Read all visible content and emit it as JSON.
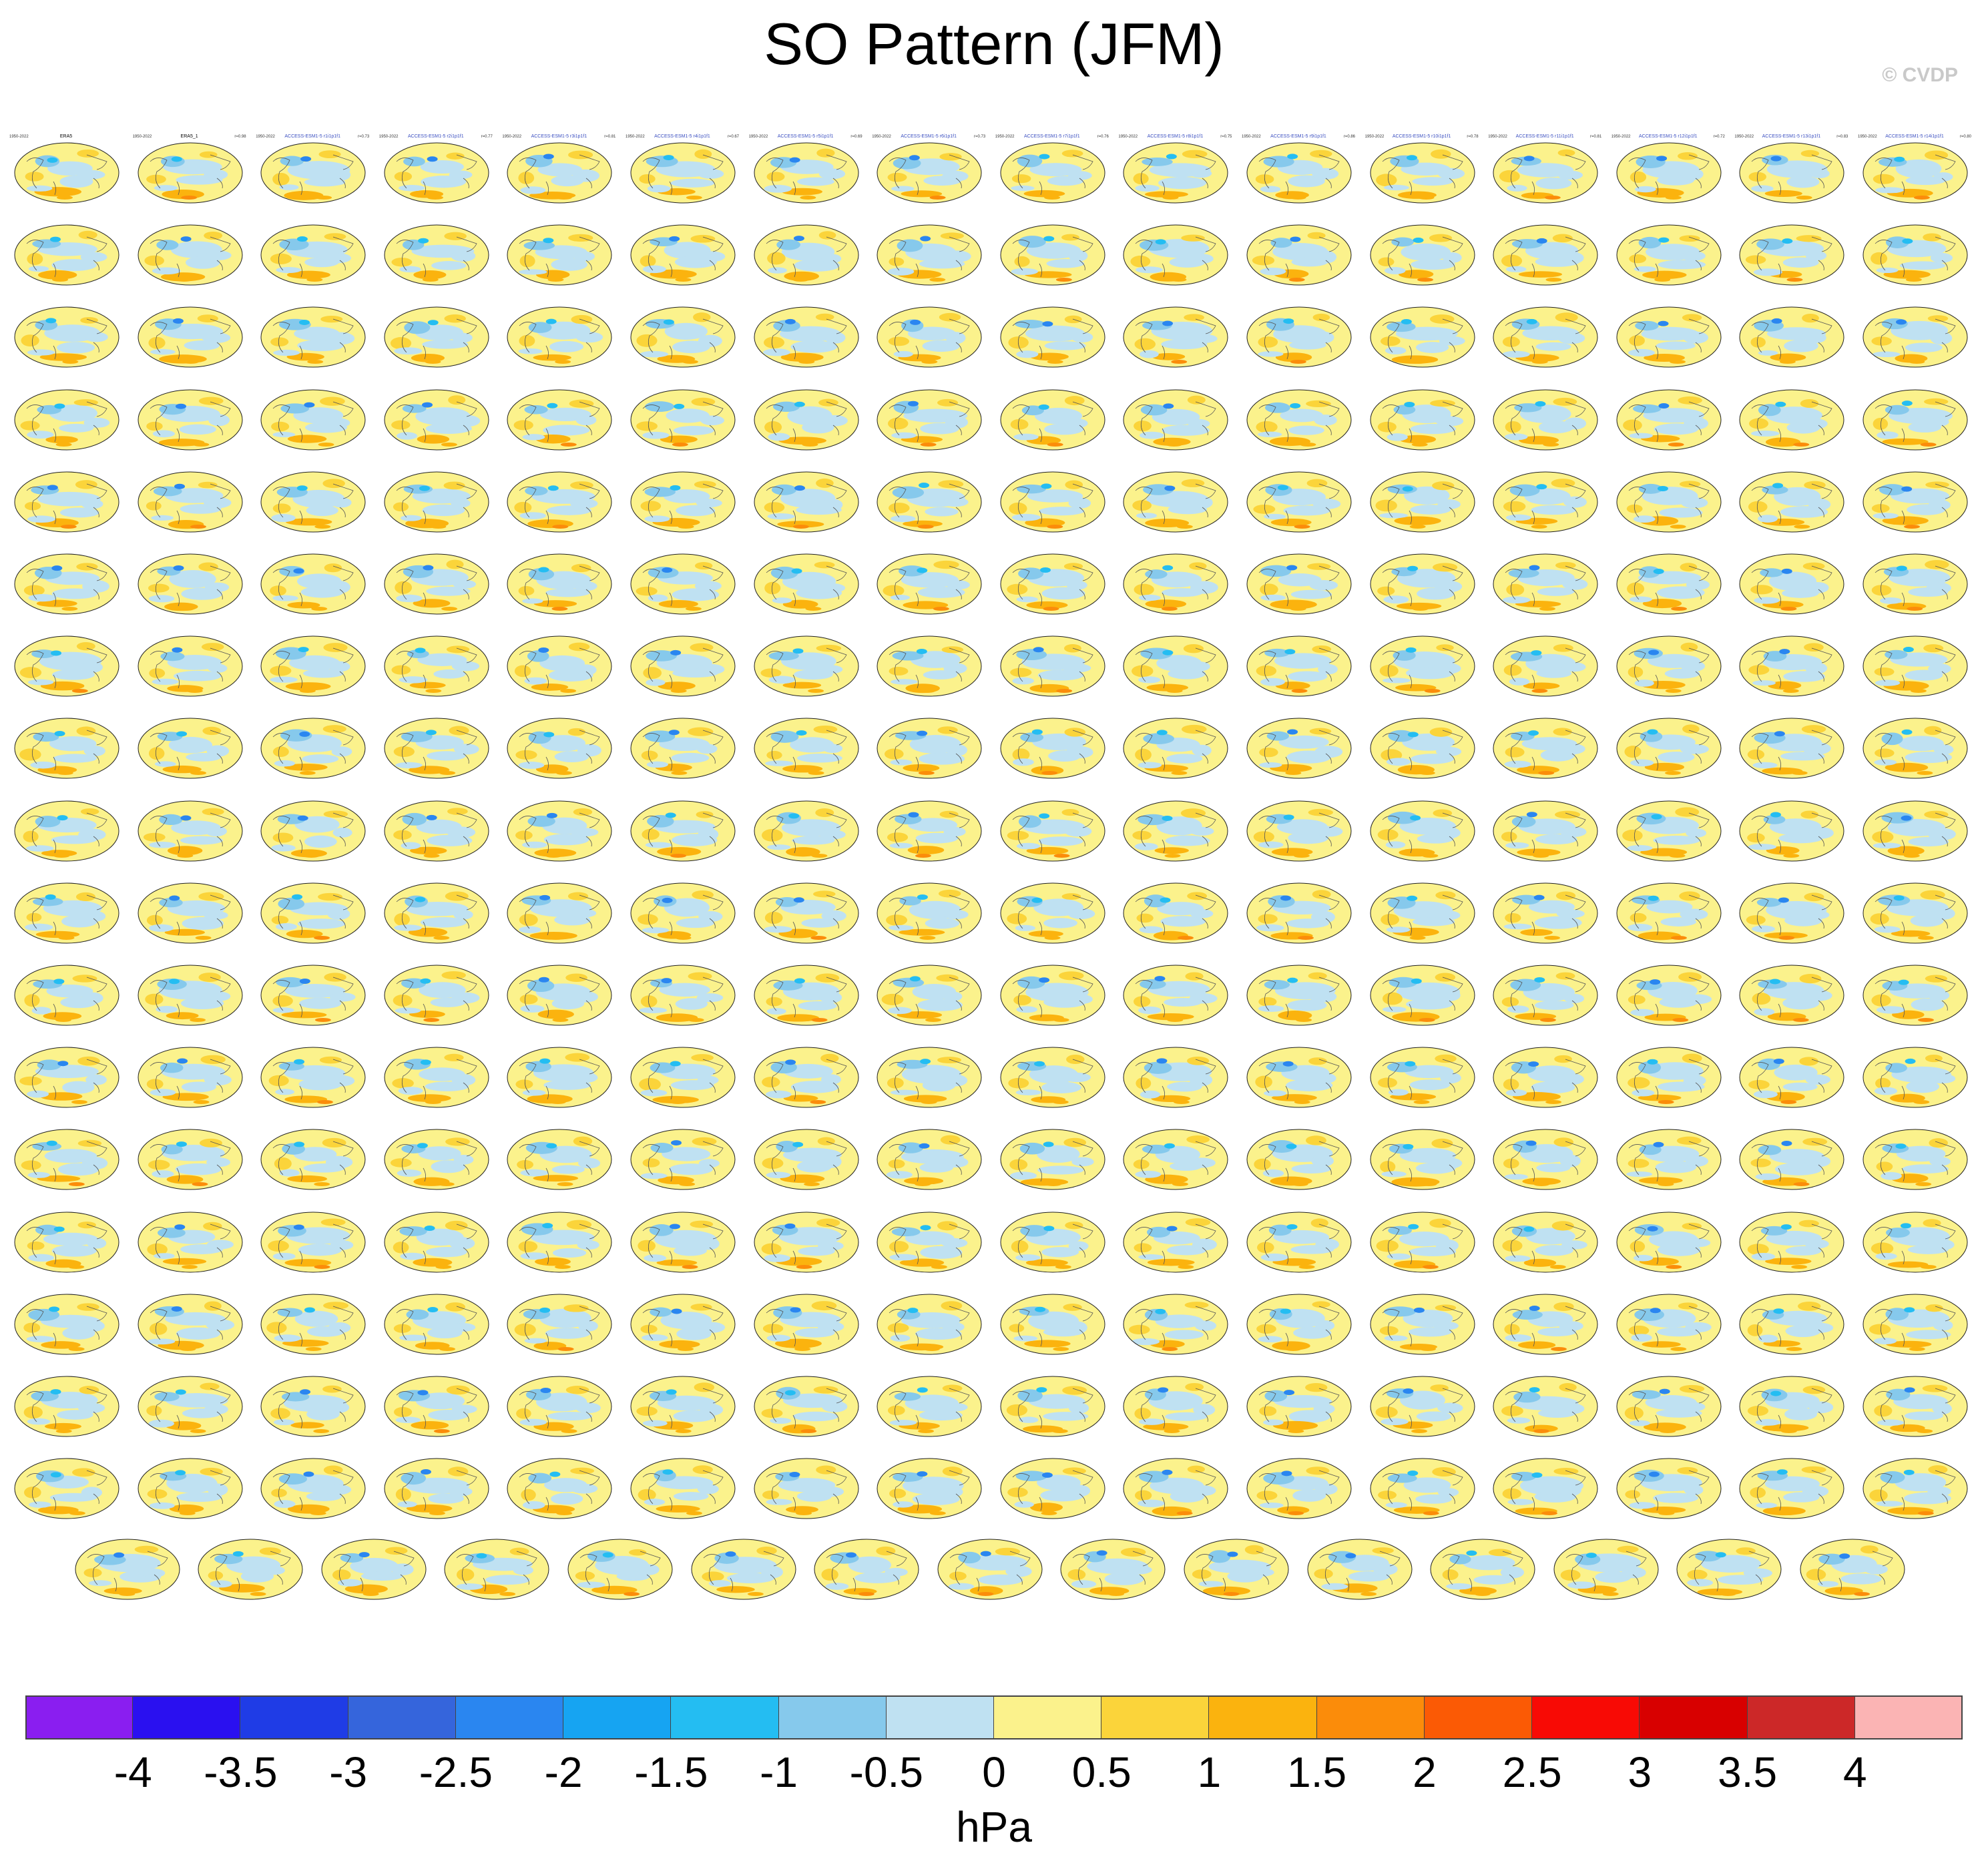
{
  "title": "SO Pattern (JFM)",
  "credit": "© CVDP",
  "colorbar": {
    "units": "hPa",
    "ticks": [
      "-4",
      "-3.5",
      "-3",
      "-2.5",
      "-2",
      "-1.5",
      "-1",
      "-0.5",
      "0",
      "0.5",
      "1",
      "1.5",
      "2",
      "2.5",
      "3",
      "3.5",
      "4"
    ],
    "colors": [
      "#8a1ef0",
      "#2a10f0",
      "#1f3ce6",
      "#3565dc",
      "#2a86f0",
      "#16a4f2",
      "#24bdf2",
      "#86c9ec",
      "#bfe1f2",
      "#fbf28c",
      "#fbd43a",
      "#fbb30e",
      "#fb8c0a",
      "#fb5a05",
      "#f80a05",
      "#d80000",
      "#cc2828",
      "#fbb4b4"
    ]
  },
  "chart_data": {
    "type": "heatmap",
    "title": "SO Pattern (JFM)",
    "description_units": "hPa",
    "levels": [
      -4,
      -3.5,
      -3,
      -2.5,
      -2,
      -1.5,
      -1,
      -0.5,
      0,
      0.5,
      1,
      1.5,
      2,
      2.5,
      3,
      3.5,
      4
    ],
    "panel_grid": {
      "rows_full": 17,
      "cols_full": 16,
      "last_row_panels": 15
    },
    "panels": {
      "first_titles": [
        "ERA5",
        "ERA5_1",
        "ACCESS-ESM1-5 r1i1p1f1",
        "ACCESS-ESM1-5 r2i1p1f1",
        "ACCESS-ESM1-5 r3i1p1f1",
        "ACCESS-ESM1-5 r4i1p1f1",
        "ACCESS-ESM1-5 r5i1p1f1",
        "ACCESS-ESM1-5 r6i1p1f1",
        "ACCESS-ESM1-5 r7i1p1f1",
        "ACCESS-ESM1-5 r8i1p1f1",
        "ACCESS-ESM1-5 r9i1p1f1",
        "ACCESS-ESM1-5 r10i1p1f1",
        "ACCESS-ESM1-5 r11i1p1f1",
        "ACCESS-ESM1-5 r12i1p1f1",
        "ACCESS-ESM1-5 r13i1p1f1",
        "ACCESS-ESM1-5 r14i1p1f1"
      ],
      "period": "1950-2022",
      "correlations_row1": [
        "",
        "r=0.98",
        "r=0.73",
        "r=0.77",
        "r=0.81",
        "r=0.67",
        "r=0.69",
        "r=0.73",
        "r=0.76",
        "r=0.75",
        "r=0.86",
        "r=0.78",
        "r=0.81",
        "r=0.72",
        "r=0.83",
        "r=0.80"
      ]
    }
  }
}
